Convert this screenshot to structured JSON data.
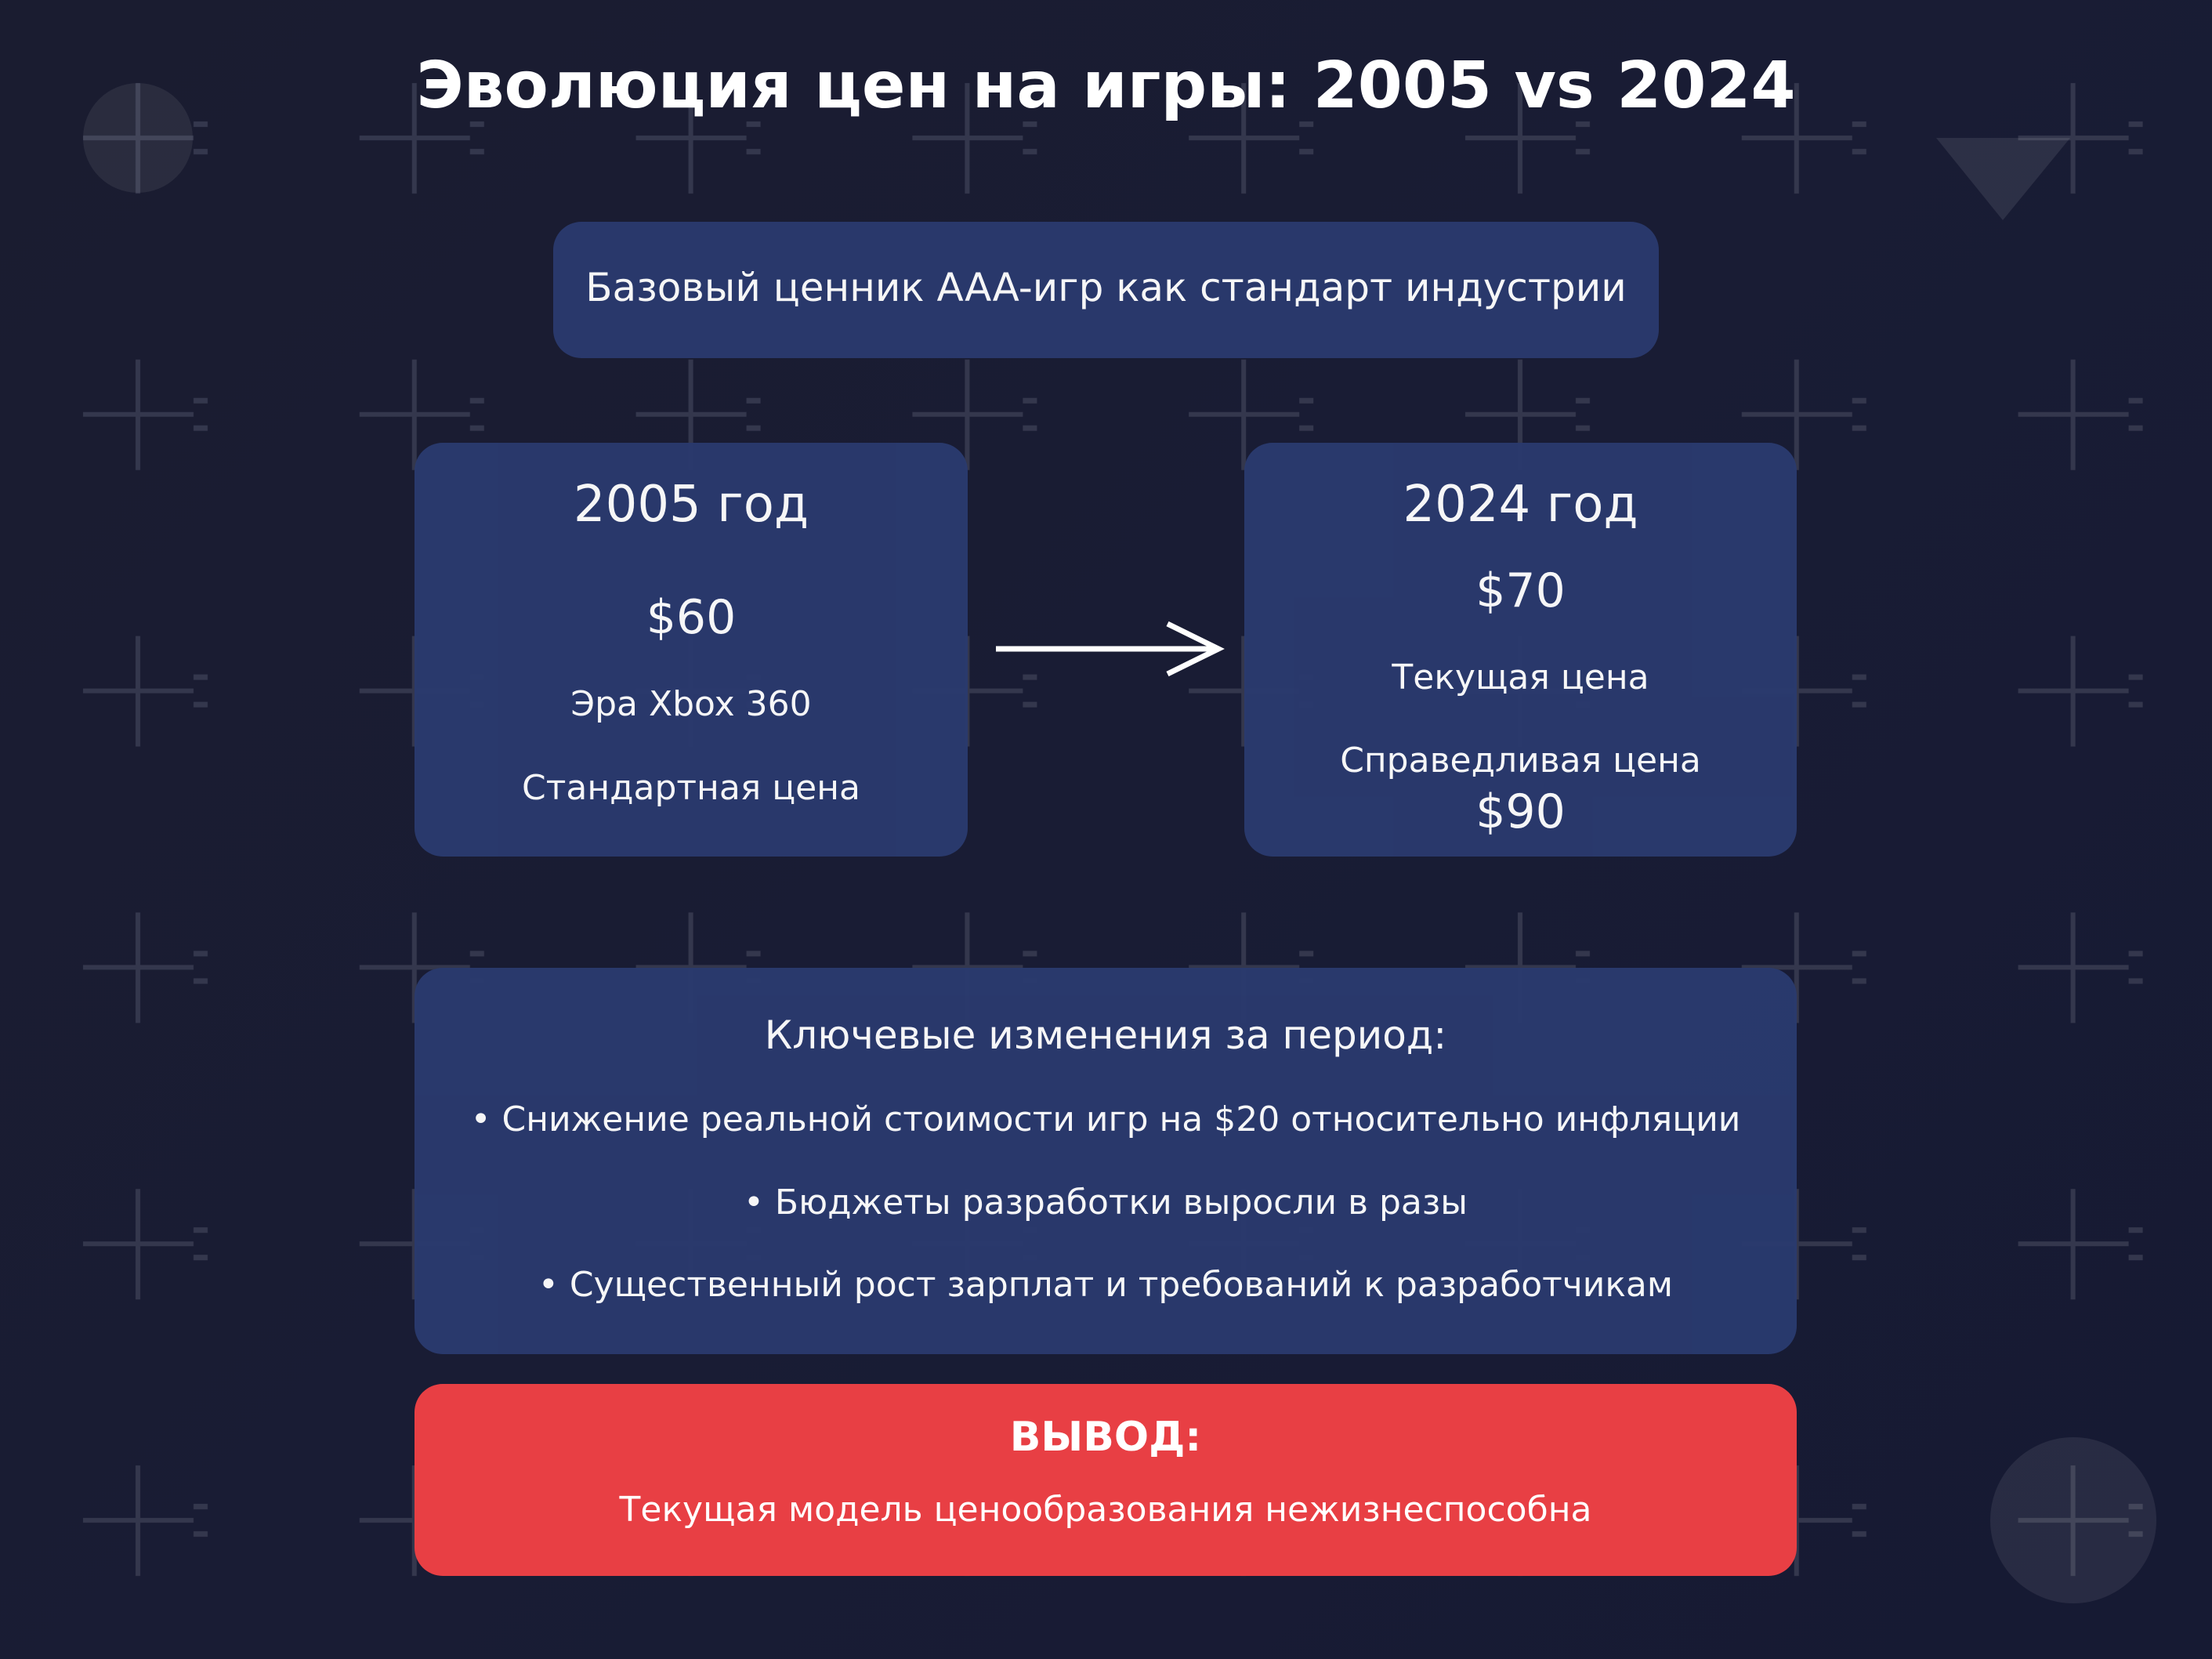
{
  "title": "Эволюция цен на игры: 2005 vs 2024",
  "subtitle": "Базовый ценник AAA-игр как стандарт индустрии",
  "card_2005": {
    "year": "2005 год",
    "price": "$60",
    "era": "Эра Xbox 360",
    "note": "Стандартная цена"
  },
  "card_2024": {
    "year": "2024 год",
    "price": "$70",
    "note": "Текущая цена",
    "fair_label": "Справедливая цена",
    "fair_price": "$90"
  },
  "changes": {
    "heading": "Ключевые изменения за период:",
    "items": [
      "• Снижение реальной стоимости игр на $20 относительно инфляции",
      "• Бюджеты разработки выросли в разы",
      "• Существенный рост зарплат и требований к разработчикам"
    ]
  },
  "conclusion": {
    "heading": "ВЫВОД:",
    "text": "Текущая модель ценообразования нежизнеспособна"
  },
  "colors": {
    "background": "#191c33",
    "card": "#2a3a6e",
    "conclusion": "#e83f44",
    "text": "#ffffff"
  },
  "icons": {
    "arrow": "arrow-right-icon"
  }
}
